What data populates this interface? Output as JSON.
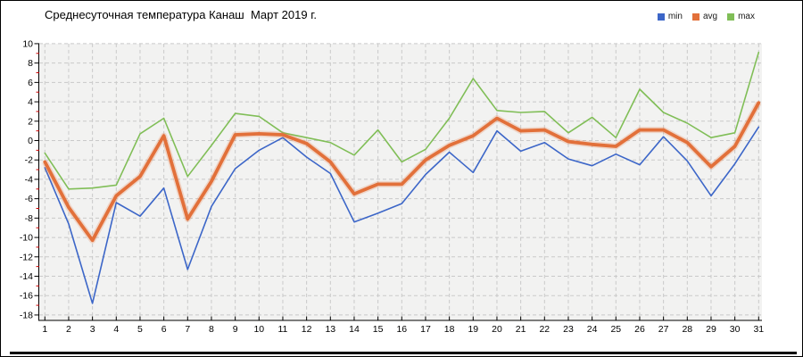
{
  "title": "Среднесуточная температура Канаш  Март 2019 г.",
  "legend": [
    {
      "label": "min",
      "color": "#3C66C8"
    },
    {
      "label": "avg",
      "color": "#E2703A"
    },
    {
      "label": "max",
      "color": "#80BE57"
    }
  ],
  "chart_data": {
    "type": "line",
    "title": "Среднесуточная температура Канаш  Март 2019 г.",
    "xlabel": "",
    "ylabel": "",
    "x": [
      1,
      2,
      3,
      4,
      5,
      6,
      7,
      8,
      9,
      10,
      11,
      12,
      13,
      14,
      15,
      16,
      17,
      18,
      19,
      20,
      21,
      22,
      23,
      24,
      25,
      26,
      27,
      28,
      29,
      30,
      31
    ],
    "ylim": [
      -18,
      10
    ],
    "ytick_step": 2,
    "grid": "dashed",
    "legend_position": "top-right",
    "plot_bg": "#F2F2F1",
    "grid_color": "#C9C9C9",
    "axis_color": "#000000",
    "minor_tick_color": "#CC0000",
    "series": [
      {
        "name": "min",
        "color": "#3C66C8",
        "width": 1.6,
        "values": [
          -2.8,
          -8.6,
          -16.8,
          -6.4,
          -7.8,
          -4.9,
          -13.3,
          -6.8,
          -2.9,
          -1.0,
          0.3,
          -1.7,
          -3.4,
          -8.4,
          -7.5,
          -6.5,
          -3.5,
          -1.2,
          -3.3,
          1.0,
          -1.1,
          -0.2,
          -1.9,
          -2.6,
          -1.4,
          -2.5,
          0.4,
          -2.1,
          -5.7,
          -2.4,
          1.4
        ]
      },
      {
        "name": "avg",
        "color": "#E2703A",
        "width": 3.8,
        "values": [
          -2.2,
          -6.9,
          -10.3,
          -5.7,
          -3.7,
          0.5,
          -8.1,
          -4.2,
          0.6,
          0.7,
          0.6,
          -0.3,
          -2.2,
          -5.5,
          -4.5,
          -4.5,
          -2.0,
          -0.5,
          0.5,
          2.3,
          1.0,
          1.1,
          -0.1,
          -0.4,
          -0.6,
          1.1,
          1.1,
          -0.2,
          -2.7,
          -0.6,
          3.9
        ]
      },
      {
        "name": "max",
        "color": "#80BE57",
        "width": 1.6,
        "values": [
          -1.3,
          -5.0,
          -4.9,
          -4.6,
          0.7,
          2.3,
          -3.7,
          -0.5,
          2.8,
          2.5,
          0.8,
          0.3,
          -0.2,
          -1.5,
          1.1,
          -2.2,
          -0.9,
          2.3,
          6.4,
          3.1,
          2.9,
          3.0,
          0.8,
          2.4,
          0.3,
          5.3,
          2.9,
          1.8,
          0.3,
          0.8,
          9.1
        ]
      }
    ]
  }
}
